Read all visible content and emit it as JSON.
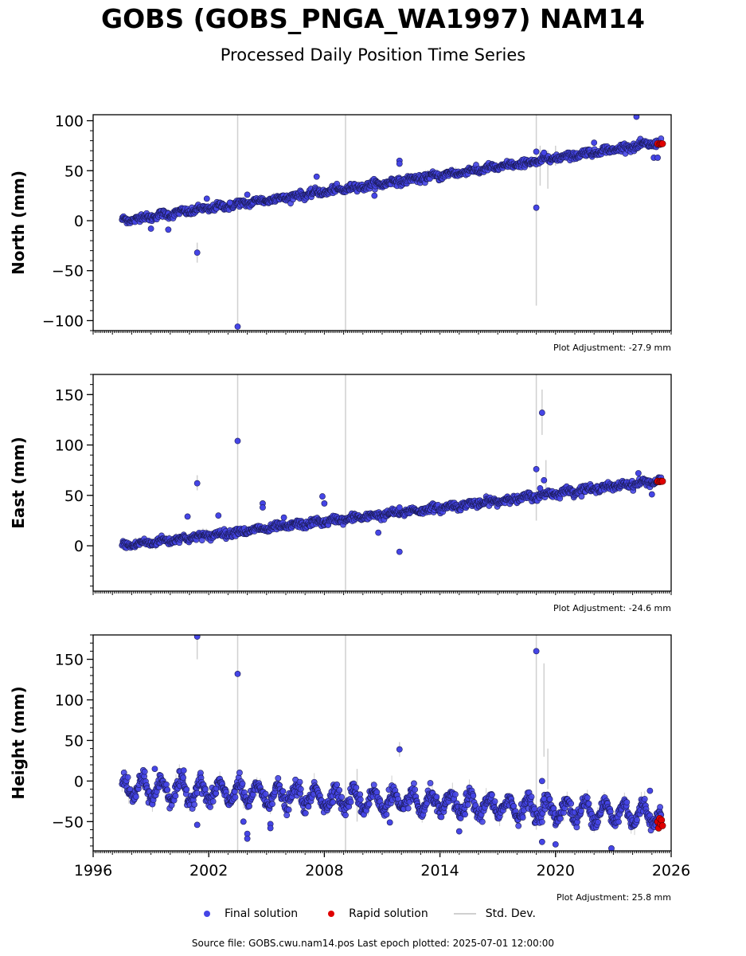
{
  "title": "GOBS (GOBS_PNGA_WA1997) NAM14",
  "subtitle": "Processed Daily Position Time Series",
  "legend": {
    "final": "Final solution",
    "rapid": "Rapid solution",
    "std": "Std. Dev.",
    "final_color": "#4545e6",
    "rapid_color": "#e00000",
    "std_color": "#d0d0d0"
  },
  "footer": "Source file: GOBS.cwu.nam14.pos  Last epoch plotted: 2025-07-01 12:00:00",
  "chart_data": [
    {
      "type": "scatter",
      "ylabel": "North (mm)",
      "adjustment": "Plot Adjustment: -27.9 mm",
      "xlim": [
        1996,
        2026
      ],
      "ylim": [
        -110,
        106
      ],
      "yticks": [
        -100,
        -50,
        0,
        50,
        100
      ],
      "ytick_labels": [
        "−100",
        "−50",
        "0",
        "50",
        "100"
      ],
      "trend": {
        "start": [
          1997.5,
          0
        ],
        "end": [
          2025.5,
          77
        ],
        "noise": 3,
        "seasonal": 1.5
      },
      "offset_after_2019_2": 6,
      "outliers": [
        [
          2001.4,
          -32
        ],
        [
          2003.5,
          -106
        ],
        [
          2019.0,
          13
        ],
        [
          2024.2,
          104
        ],
        [
          2011.9,
          60
        ],
        [
          2011.9,
          57
        ],
        [
          2007.6,
          44
        ],
        [
          2022.0,
          78
        ],
        [
          2019.0,
          69
        ],
        [
          2019.4,
          68
        ],
        [
          1999.0,
          -8
        ],
        [
          1999.9,
          -9
        ],
        [
          2001.9,
          22
        ],
        [
          2003.1,
          18
        ],
        [
          2025.1,
          63
        ],
        [
          2025.3,
          63
        ],
        [
          2004.0,
          26
        ],
        [
          2010.6,
          25
        ]
      ],
      "rapid": [
        [
          2025.3,
          77
        ],
        [
          2025.4,
          76.5
        ],
        [
          2025.45,
          77.2
        ],
        [
          2025.5,
          76.8
        ],
        [
          2025.55,
          77
        ]
      ],
      "std_lines": [
        [
          2003.5,
          -120,
          106
        ],
        [
          2009.1,
          -120,
          106
        ],
        [
          2019.0,
          -85,
          106
        ],
        [
          2001.4,
          -42,
          -22
        ],
        [
          2019.2,
          35,
          75
        ],
        [
          2019.6,
          32,
          70
        ],
        [
          2020.0,
          55,
          75
        ]
      ]
    },
    {
      "type": "scatter",
      "ylabel": "East (mm)",
      "adjustment": "Plot Adjustment: -24.6 mm",
      "xlim": [
        1996,
        2026
      ],
      "ylim": [
        -45,
        170
      ],
      "yticks": [
        0,
        50,
        100,
        150
      ],
      "ytick_labels": [
        "0",
        "50",
        "100",
        "150"
      ],
      "trend": {
        "start": [
          1997.5,
          0
        ],
        "end": [
          2025.5,
          64
        ],
        "noise": 3,
        "seasonal": 1.5
      },
      "offset_after_2019_2": 4,
      "outliers": [
        [
          2001.4,
          62
        ],
        [
          2003.5,
          104
        ],
        [
          2019.0,
          76
        ],
        [
          2019.3,
          132
        ],
        [
          2011.9,
          -6
        ],
        [
          2004.8,
          42
        ],
        [
          2004.8,
          38
        ],
        [
          2007.9,
          49
        ],
        [
          2008.0,
          42
        ],
        [
          2010.8,
          13
        ],
        [
          2000.9,
          29
        ],
        [
          2002.5,
          30
        ],
        [
          2019.4,
          65
        ],
        [
          2025.0,
          51
        ],
        [
          2024.3,
          72
        ],
        [
          2019.2,
          57
        ],
        [
          2005.9,
          28
        ],
        [
          2011.9,
          38
        ]
      ],
      "rapid": [
        [
          2025.3,
          64
        ],
        [
          2025.4,
          63.5
        ],
        [
          2025.45,
          64.2
        ],
        [
          2025.5,
          63.8
        ],
        [
          2025.55,
          64
        ]
      ],
      "std_lines": [
        [
          2003.5,
          -45,
          170
        ],
        [
          2009.1,
          -45,
          170
        ],
        [
          2019.0,
          25,
          170
        ],
        [
          2019.3,
          110,
          155
        ],
        [
          2001.4,
          55,
          70
        ],
        [
          2019.5,
          50,
          85
        ]
      ]
    },
    {
      "type": "scatter",
      "ylabel": "Height (mm)",
      "adjustment": "Plot Adjustment: 25.8 mm",
      "xlim": [
        1996,
        2026
      ],
      "xticks": [
        1996,
        2002,
        2008,
        2014,
        2020,
        2026
      ],
      "xtick_labels": [
        "1996",
        "2002",
        "2008",
        "2014",
        "2020",
        "2026"
      ],
      "ylim": [
        -86,
        180
      ],
      "yticks": [
        -50,
        0,
        50,
        100,
        150
      ],
      "ytick_labels": [
        "−50",
        "0",
        "50",
        "100",
        "150"
      ],
      "trend": {
        "start": [
          1997.5,
          -8
        ],
        "end": [
          2025.5,
          -42
        ],
        "noise": 8,
        "seasonal": 12
      },
      "offset_after_2019_2": 0,
      "outliers": [
        [
          2001.4,
          178
        ],
        [
          2003.5,
          132
        ],
        [
          2019.0,
          160
        ],
        [
          2011.9,
          39
        ],
        [
          2019.3,
          0
        ],
        [
          2019.4,
          -22
        ],
        [
          2019.3,
          -75
        ],
        [
          2020.0,
          -78
        ],
        [
          2022.9,
          -83
        ],
        [
          2001.4,
          -54
        ],
        [
          2004.0,
          -65
        ],
        [
          2004.0,
          -71
        ],
        [
          2003.8,
          -50
        ],
        [
          2005.2,
          -53
        ],
        [
          2005.2,
          -58
        ],
        [
          2000.7,
          13
        ],
        [
          1999.2,
          15
        ],
        [
          2015.0,
          -62
        ],
        [
          2024.9,
          -12
        ],
        [
          2011.4,
          -51
        ]
      ],
      "rapid": [
        [
          2025.3,
          -50
        ],
        [
          2025.35,
          -58
        ],
        [
          2025.4,
          -46
        ],
        [
          2025.45,
          -53
        ],
        [
          2025.5,
          -48
        ],
        [
          2025.55,
          -55
        ]
      ],
      "std_lines": [
        [
          2003.5,
          -86,
          180
        ],
        [
          2009.1,
          -86,
          180
        ],
        [
          2019.0,
          -60,
          180
        ],
        [
          2019.4,
          30,
          145
        ],
        [
          2019.6,
          -10,
          40
        ],
        [
          2001.4,
          150,
          175
        ],
        [
          2011.9,
          30,
          48
        ],
        [
          2009.7,
          -50,
          15
        ]
      ]
    }
  ]
}
